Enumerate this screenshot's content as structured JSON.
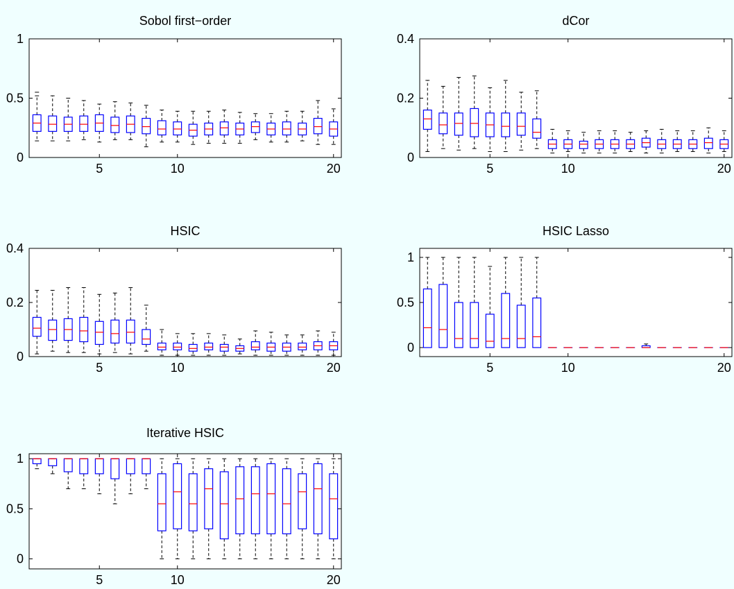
{
  "figure": {
    "background": "#f0ffff",
    "box_color": "#0000ff",
    "median_color": "#ff0000",
    "whisker_color": "#000000"
  },
  "chart_data": [
    {
      "type": "boxplot",
      "title": "Sobol first−order",
      "xlim": [
        1,
        20
      ],
      "ylim": [
        0,
        1
      ],
      "xticks": [
        5,
        10,
        20
      ],
      "yticks": [
        0,
        0.5,
        1
      ],
      "ytick_labels": [
        "0",
        "0.5",
        "1"
      ],
      "boxes": [
        {
          "x": 1,
          "q1": 0.22,
          "median": 0.29,
          "q3": 0.36,
          "lo": 0.14,
          "hi": 0.52,
          "outlier": 0.55
        },
        {
          "x": 2,
          "q1": 0.22,
          "median": 0.28,
          "q3": 0.35,
          "lo": 0.14,
          "hi": 0.52
        },
        {
          "x": 3,
          "q1": 0.22,
          "median": 0.28,
          "q3": 0.34,
          "lo": 0.14,
          "hi": 0.5
        },
        {
          "x": 4,
          "q1": 0.22,
          "median": 0.28,
          "q3": 0.35,
          "lo": 0.15,
          "hi": 0.48
        },
        {
          "x": 5,
          "q1": 0.22,
          "median": 0.29,
          "q3": 0.36,
          "lo": 0.13,
          "hi": 0.45
        },
        {
          "x": 6,
          "q1": 0.21,
          "median": 0.27,
          "q3": 0.34,
          "lo": 0.15,
          "hi": 0.47
        },
        {
          "x": 7,
          "q1": 0.21,
          "median": 0.28,
          "q3": 0.35,
          "lo": 0.15,
          "hi": 0.46
        },
        {
          "x": 8,
          "q1": 0.2,
          "median": 0.26,
          "q3": 0.33,
          "lo": 0.09,
          "hi": 0.44
        },
        {
          "x": 9,
          "q1": 0.19,
          "median": 0.24,
          "q3": 0.31,
          "lo": 0.13,
          "hi": 0.4
        },
        {
          "x": 10,
          "q1": 0.19,
          "median": 0.24,
          "q3": 0.3,
          "lo": 0.13,
          "hi": 0.39
        },
        {
          "x": 11,
          "q1": 0.18,
          "median": 0.23,
          "q3": 0.28,
          "lo": 0.11,
          "hi": 0.39
        },
        {
          "x": 12,
          "q1": 0.19,
          "median": 0.24,
          "q3": 0.29,
          "lo": 0.12,
          "hi": 0.39
        },
        {
          "x": 13,
          "q1": 0.19,
          "median": 0.25,
          "q3": 0.3,
          "lo": 0.12,
          "hi": 0.4
        },
        {
          "x": 14,
          "q1": 0.19,
          "median": 0.24,
          "q3": 0.29,
          "lo": 0.12,
          "hi": 0.38
        },
        {
          "x": 15,
          "q1": 0.21,
          "median": 0.26,
          "q3": 0.3,
          "lo": 0.15,
          "hi": 0.37
        },
        {
          "x": 16,
          "q1": 0.19,
          "median": 0.24,
          "q3": 0.29,
          "lo": 0.13,
          "hi": 0.37
        },
        {
          "x": 17,
          "q1": 0.19,
          "median": 0.24,
          "q3": 0.3,
          "lo": 0.13,
          "hi": 0.39
        },
        {
          "x": 18,
          "q1": 0.19,
          "median": 0.24,
          "q3": 0.29,
          "lo": 0.14,
          "hi": 0.39
        },
        {
          "x": 19,
          "q1": 0.2,
          "median": 0.26,
          "q3": 0.33,
          "lo": 0.11,
          "hi": 0.48
        },
        {
          "x": 20,
          "q1": 0.18,
          "median": 0.24,
          "q3": 0.3,
          "lo": 0.11,
          "hi": 0.41
        }
      ]
    },
    {
      "type": "boxplot",
      "title": "dCor",
      "xlim": [
        1,
        20
      ],
      "ylim": [
        0,
        0.4
      ],
      "xticks": [
        5,
        10,
        20
      ],
      "yticks": [
        0,
        0.2,
        0.4
      ],
      "ytick_labels": [
        "0",
        "0.2",
        "0.4"
      ],
      "boxes": [
        {
          "x": 1,
          "q1": 0.095,
          "median": 0.13,
          "q3": 0.16,
          "lo": 0.02,
          "hi": 0.26
        },
        {
          "x": 2,
          "q1": 0.08,
          "median": 0.11,
          "q3": 0.15,
          "lo": 0.03,
          "hi": 0.24
        },
        {
          "x": 3,
          "q1": 0.075,
          "median": 0.115,
          "q3": 0.15,
          "lo": 0.025,
          "hi": 0.27
        },
        {
          "x": 4,
          "q1": 0.07,
          "median": 0.115,
          "q3": 0.165,
          "lo": 0.03,
          "hi": 0.275
        },
        {
          "x": 5,
          "q1": 0.07,
          "median": 0.11,
          "q3": 0.15,
          "lo": 0.02,
          "hi": 0.235
        },
        {
          "x": 6,
          "q1": 0.07,
          "median": 0.105,
          "q3": 0.15,
          "lo": 0.02,
          "hi": 0.26
        },
        {
          "x": 7,
          "q1": 0.075,
          "median": 0.105,
          "q3": 0.15,
          "lo": 0.025,
          "hi": 0.22
        },
        {
          "x": 8,
          "q1": 0.065,
          "median": 0.085,
          "q3": 0.13,
          "lo": 0.03,
          "hi": 0.225
        },
        {
          "x": 9,
          "q1": 0.03,
          "median": 0.045,
          "q3": 0.06,
          "lo": 0.015,
          "hi": 0.095
        },
        {
          "x": 10,
          "q1": 0.03,
          "median": 0.045,
          "q3": 0.06,
          "lo": 0.02,
          "hi": 0.09
        },
        {
          "x": 11,
          "q1": 0.03,
          "median": 0.045,
          "q3": 0.055,
          "lo": 0.015,
          "hi": 0.085
        },
        {
          "x": 12,
          "q1": 0.03,
          "median": 0.045,
          "q3": 0.06,
          "lo": 0.015,
          "hi": 0.09
        },
        {
          "x": 13,
          "q1": 0.03,
          "median": 0.045,
          "q3": 0.06,
          "lo": 0.015,
          "hi": 0.09
        },
        {
          "x": 14,
          "q1": 0.03,
          "median": 0.045,
          "q3": 0.06,
          "lo": 0.02,
          "hi": 0.085
        },
        {
          "x": 15,
          "q1": 0.035,
          "median": 0.05,
          "q3": 0.065,
          "lo": 0.015,
          "hi": 0.09
        },
        {
          "x": 16,
          "q1": 0.03,
          "median": 0.045,
          "q3": 0.06,
          "lo": 0.015,
          "hi": 0.095
        },
        {
          "x": 17,
          "q1": 0.03,
          "median": 0.045,
          "q3": 0.06,
          "lo": 0.02,
          "hi": 0.09
        },
        {
          "x": 18,
          "q1": 0.03,
          "median": 0.045,
          "q3": 0.06,
          "lo": 0.02,
          "hi": 0.09
        },
        {
          "x": 19,
          "q1": 0.03,
          "median": 0.05,
          "q3": 0.065,
          "lo": 0.015,
          "hi": 0.1
        },
        {
          "x": 20,
          "q1": 0.03,
          "median": 0.045,
          "q3": 0.06,
          "lo": 0.02,
          "hi": 0.09
        }
      ]
    },
    {
      "type": "boxplot",
      "title": "HSIC",
      "xlim": [
        1,
        20
      ],
      "ylim": [
        0,
        0.4
      ],
      "xticks": [
        5,
        10,
        20
      ],
      "yticks": [
        0,
        0.2,
        0.4
      ],
      "ytick_labels": [
        "0",
        "0.2",
        "0.4"
      ],
      "boxes": [
        {
          "x": 1,
          "q1": 0.075,
          "median": 0.105,
          "q3": 0.145,
          "lo": 0.01,
          "hi": 0.245
        },
        {
          "x": 2,
          "q1": 0.06,
          "median": 0.1,
          "q3": 0.135,
          "lo": 0.02,
          "hi": 0.245
        },
        {
          "x": 3,
          "q1": 0.06,
          "median": 0.1,
          "q3": 0.14,
          "lo": 0.015,
          "hi": 0.255
        },
        {
          "x": 4,
          "q1": 0.055,
          "median": 0.095,
          "q3": 0.145,
          "lo": 0.015,
          "hi": 0.255
        },
        {
          "x": 5,
          "q1": 0.045,
          "median": 0.09,
          "q3": 0.13,
          "lo": 0.01,
          "hi": 0.23
        },
        {
          "x": 6,
          "q1": 0.05,
          "median": 0.085,
          "q3": 0.135,
          "lo": 0.015,
          "hi": 0.235
        },
        {
          "x": 7,
          "q1": 0.05,
          "median": 0.09,
          "q3": 0.135,
          "lo": 0.01,
          "hi": 0.255
        },
        {
          "x": 8,
          "q1": 0.045,
          "median": 0.065,
          "q3": 0.1,
          "lo": 0.02,
          "hi": 0.19
        },
        {
          "x": 9,
          "q1": 0.025,
          "median": 0.035,
          "q3": 0.05,
          "lo": 0.005,
          "hi": 0.1
        },
        {
          "x": 10,
          "q1": 0.025,
          "median": 0.035,
          "q3": 0.05,
          "lo": 0.005,
          "hi": 0.085
        },
        {
          "x": 11,
          "q1": 0.02,
          "median": 0.03,
          "q3": 0.045,
          "lo": 0.005,
          "hi": 0.085
        },
        {
          "x": 12,
          "q1": 0.025,
          "median": 0.035,
          "q3": 0.05,
          "lo": 0.005,
          "hi": 0.085
        },
        {
          "x": 13,
          "q1": 0.02,
          "median": 0.035,
          "q3": 0.045,
          "lo": 0.005,
          "hi": 0.08
        },
        {
          "x": 14,
          "q1": 0.02,
          "median": 0.03,
          "q3": 0.04,
          "lo": 0.01,
          "hi": 0.065
        },
        {
          "x": 15,
          "q1": 0.025,
          "median": 0.035,
          "q3": 0.055,
          "lo": 0.005,
          "hi": 0.095
        },
        {
          "x": 16,
          "q1": 0.02,
          "median": 0.035,
          "q3": 0.05,
          "lo": 0.005,
          "hi": 0.09
        },
        {
          "x": 17,
          "q1": 0.02,
          "median": 0.035,
          "q3": 0.05,
          "lo": 0.005,
          "hi": 0.08
        },
        {
          "x": 18,
          "q1": 0.025,
          "median": 0.035,
          "q3": 0.05,
          "lo": 0.005,
          "hi": 0.08
        },
        {
          "x": 19,
          "q1": 0.025,
          "median": 0.04,
          "q3": 0.055,
          "lo": 0.005,
          "hi": 0.095
        },
        {
          "x": 20,
          "q1": 0.025,
          "median": 0.04,
          "q3": 0.055,
          "lo": 0.005,
          "hi": 0.09
        }
      ]
    },
    {
      "type": "boxplot",
      "title": "HSIC Lasso",
      "xlim": [
        1,
        20
      ],
      "ylim": [
        -0.1,
        1.1
      ],
      "xticks": [
        5,
        10,
        20
      ],
      "yticks": [
        0,
        0.5,
        1
      ],
      "ytick_labels": [
        "0",
        "0.5",
        "1"
      ],
      "boxes": [
        {
          "x": 1,
          "q1": 0,
          "median": 0.22,
          "q3": 0.65,
          "lo": 0,
          "hi": 1
        },
        {
          "x": 2,
          "q1": 0,
          "median": 0.2,
          "q3": 0.7,
          "lo": 0,
          "hi": 1
        },
        {
          "x": 3,
          "q1": 0,
          "median": 0.1,
          "q3": 0.5,
          "lo": 0,
          "hi": 1
        },
        {
          "x": 4,
          "q1": 0,
          "median": 0.1,
          "q3": 0.5,
          "lo": 0,
          "hi": 1
        },
        {
          "x": 5,
          "q1": 0,
          "median": 0.07,
          "q3": 0.37,
          "lo": 0,
          "hi": 0.9
        },
        {
          "x": 6,
          "q1": 0,
          "median": 0.1,
          "q3": 0.6,
          "lo": 0,
          "hi": 1
        },
        {
          "x": 7,
          "q1": 0,
          "median": 0.1,
          "q3": 0.47,
          "lo": 0,
          "hi": 1
        },
        {
          "x": 8,
          "q1": 0,
          "median": 0.12,
          "q3": 0.55,
          "lo": 0,
          "hi": 1
        },
        {
          "x": 9,
          "q1": 0,
          "median": 0,
          "q3": 0,
          "lo": 0,
          "hi": 0
        },
        {
          "x": 10,
          "q1": 0,
          "median": 0,
          "q3": 0,
          "lo": 0,
          "hi": 0
        },
        {
          "x": 11,
          "q1": 0,
          "median": 0,
          "q3": 0,
          "lo": 0,
          "hi": 0
        },
        {
          "x": 12,
          "q1": 0,
          "median": 0,
          "q3": 0,
          "lo": 0,
          "hi": 0
        },
        {
          "x": 13,
          "q1": 0,
          "median": 0,
          "q3": 0,
          "lo": 0,
          "hi": 0
        },
        {
          "x": 14,
          "q1": 0,
          "median": 0,
          "q3": 0,
          "lo": 0,
          "hi": 0
        },
        {
          "x": 15,
          "q1": 0,
          "median": 0,
          "q3": 0.02,
          "lo": 0,
          "hi": 0.04
        },
        {
          "x": 16,
          "q1": 0,
          "median": 0,
          "q3": 0,
          "lo": 0,
          "hi": 0
        },
        {
          "x": 17,
          "q1": 0,
          "median": 0,
          "q3": 0,
          "lo": 0,
          "hi": 0
        },
        {
          "x": 18,
          "q1": 0,
          "median": 0,
          "q3": 0,
          "lo": 0,
          "hi": 0
        },
        {
          "x": 19,
          "q1": 0,
          "median": 0,
          "q3": 0,
          "lo": 0,
          "hi": 0
        },
        {
          "x": 20,
          "q1": 0,
          "median": 0,
          "q3": 0,
          "lo": 0,
          "hi": 0
        }
      ]
    },
    {
      "type": "boxplot",
      "title": "Iterative HSIC",
      "xlim": [
        1,
        20
      ],
      "ylim": [
        -0.1,
        1.05
      ],
      "xticks": [
        5,
        10,
        20
      ],
      "yticks": [
        0,
        0.5,
        1
      ],
      "ytick_labels": [
        "0",
        "0.5",
        "1"
      ],
      "boxes": [
        {
          "x": 1,
          "q1": 0.95,
          "median": 1,
          "q3": 1,
          "lo": 0.9,
          "hi": 1
        },
        {
          "x": 2,
          "q1": 0.93,
          "median": 1,
          "q3": 1,
          "lo": 0.85,
          "hi": 1
        },
        {
          "x": 3,
          "q1": 0.87,
          "median": 1,
          "q3": 1,
          "lo": 0.7,
          "hi": 1
        },
        {
          "x": 4,
          "q1": 0.85,
          "median": 1,
          "q3": 1,
          "lo": 0.7,
          "hi": 1
        },
        {
          "x": 5,
          "q1": 0.85,
          "median": 1,
          "q3": 1,
          "lo": 0.65,
          "hi": 1
        },
        {
          "x": 6,
          "q1": 0.8,
          "median": 1,
          "q3": 1,
          "lo": 0.55,
          "hi": 1
        },
        {
          "x": 7,
          "q1": 0.85,
          "median": 1,
          "q3": 1,
          "lo": 0.65,
          "hi": 1
        },
        {
          "x": 8,
          "q1": 0.85,
          "median": 1,
          "q3": 1,
          "lo": 0.7,
          "hi": 1
        },
        {
          "x": 9,
          "q1": 0.28,
          "median": 0.55,
          "q3": 0.85,
          "lo": 0,
          "hi": 1
        },
        {
          "x": 10,
          "q1": 0.3,
          "median": 0.67,
          "q3": 0.95,
          "lo": 0,
          "hi": 1
        },
        {
          "x": 11,
          "q1": 0.28,
          "median": 0.55,
          "q3": 0.85,
          "lo": 0,
          "hi": 1
        },
        {
          "x": 12,
          "q1": 0.3,
          "median": 0.7,
          "q3": 0.9,
          "lo": 0,
          "hi": 1
        },
        {
          "x": 13,
          "q1": 0.2,
          "median": 0.55,
          "q3": 0.87,
          "lo": 0,
          "hi": 1
        },
        {
          "x": 14,
          "q1": 0.25,
          "median": 0.6,
          "q3": 0.92,
          "lo": 0,
          "hi": 1
        },
        {
          "x": 15,
          "q1": 0.25,
          "median": 0.65,
          "q3": 0.92,
          "lo": 0,
          "hi": 1
        },
        {
          "x": 16,
          "q1": 0.25,
          "median": 0.65,
          "q3": 0.95,
          "lo": 0,
          "hi": 1
        },
        {
          "x": 17,
          "q1": 0.25,
          "median": 0.55,
          "q3": 0.9,
          "lo": 0,
          "hi": 1
        },
        {
          "x": 18,
          "q1": 0.3,
          "median": 0.67,
          "q3": 0.85,
          "lo": 0,
          "hi": 1
        },
        {
          "x": 19,
          "q1": 0.25,
          "median": 0.7,
          "q3": 0.95,
          "lo": 0,
          "hi": 1
        },
        {
          "x": 20,
          "q1": 0.2,
          "median": 0.6,
          "q3": 0.85,
          "lo": 0,
          "hi": 1
        }
      ]
    }
  ]
}
